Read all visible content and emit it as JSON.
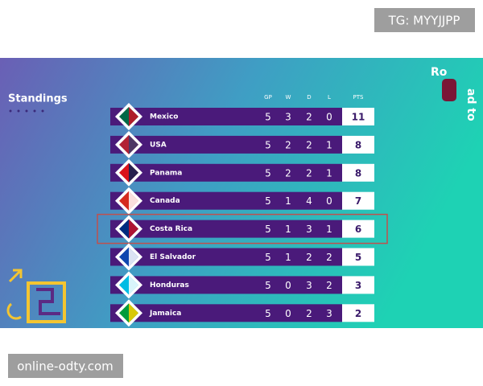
{
  "header": {
    "title": "Standings",
    "logo_top": "Ro",
    "logo_side": "ad to"
  },
  "watermarks": {
    "top": "TG: MYYJJPP",
    "bottom": "online-odty.com"
  },
  "table": {
    "columns": [
      "GP",
      "W",
      "D",
      "L",
      "PTS"
    ],
    "rows": [
      [
        "Mexico",
        5,
        3,
        2,
        0,
        11
      ],
      [
        "USA",
        5,
        2,
        2,
        1,
        8
      ],
      [
        "Panama",
        5,
        2,
        2,
        1,
        8
      ],
      [
        "Canada",
        5,
        1,
        4,
        0,
        7
      ],
      [
        "Costa Rica",
        5,
        1,
        3,
        1,
        6
      ],
      [
        "El Salvador",
        5,
        1,
        2,
        2,
        5
      ],
      [
        "Honduras",
        5,
        0,
        3,
        2,
        3
      ],
      [
        "Jamaica",
        5,
        0,
        2,
        3,
        2
      ]
    ],
    "highlight_row": 4
  }
}
